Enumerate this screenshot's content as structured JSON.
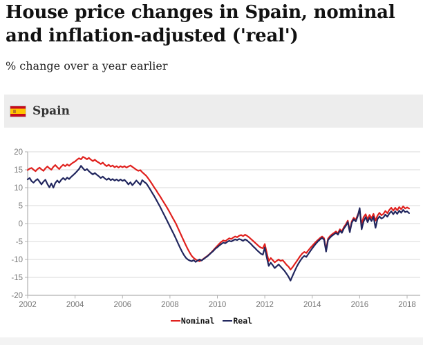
{
  "page": {
    "title": "House price changes in Spain, nominal and inflation-adjusted ('real')",
    "subtitle": "% change over a year earlier",
    "country_header": {
      "label": "Spain",
      "flag_icon": "spain-flag",
      "flag_colors": {
        "red": "#c60b1e",
        "yellow": "#ffc400"
      },
      "background": "#ededed"
    }
  },
  "chart_data": {
    "type": "line",
    "title": "",
    "xlabel": "",
    "ylabel": "",
    "x_start_year": 2002,
    "x_step_months": 1,
    "xlim": [
      2002,
      2018.25
    ],
    "ylim": [
      -20,
      20
    ],
    "x_ticks": [
      2002,
      2004,
      2006,
      2008,
      2010,
      2012,
      2014,
      2016,
      2018
    ],
    "y_ticks": [
      20,
      15,
      10,
      5,
      0,
      -5,
      -10,
      -15,
      -20
    ],
    "grid": true,
    "grid_color": "#d9d9d9",
    "axis_color": "#b0b0b0",
    "tick_label_color": "#777777",
    "legend_position": "bottom",
    "series": [
      {
        "name": "Nominal",
        "color": "#e0201d",
        "values": [
          14.9,
          15.3,
          15.5,
          15.0,
          14.6,
          15.2,
          15.6,
          15.1,
          14.7,
          15.4,
          15.9,
          15.4,
          15.0,
          15.8,
          16.3,
          15.7,
          15.2,
          15.9,
          16.4,
          16.0,
          16.5,
          16.1,
          16.6,
          17.0,
          17.3,
          17.8,
          18.2,
          17.9,
          18.6,
          18.3,
          17.9,
          18.3,
          17.8,
          17.4,
          17.8,
          17.3,
          17.0,
          16.6,
          17.0,
          16.4,
          16.0,
          16.4,
          15.9,
          16.2,
          15.7,
          16.0,
          15.6,
          16.0,
          15.7,
          16.0,
          15.6,
          15.9,
          16.2,
          15.8,
          15.4,
          15.0,
          14.7,
          14.9,
          14.3,
          13.8,
          13.3,
          12.6,
          11.8,
          11.0,
          10.1,
          9.3,
          8.4,
          7.6,
          6.7,
          5.8,
          4.9,
          4.0,
          3.0,
          2.0,
          1.0,
          0.0,
          -1.2,
          -2.4,
          -3.6,
          -4.8,
          -6.0,
          -7.1,
          -8.1,
          -9.0,
          -9.6,
          -10.0,
          -10.3,
          -10.5,
          -10.2,
          -9.8,
          -9.4,
          -9.0,
          -8.5,
          -8.0,
          -7.4,
          -6.8,
          -6.2,
          -5.6,
          -5.1,
          -4.7,
          -4.9,
          -4.5,
          -4.1,
          -4.3,
          -3.9,
          -3.6,
          -3.8,
          -3.4,
          -3.2,
          -3.5,
          -3.1,
          -3.4,
          -3.8,
          -4.3,
          -4.8,
          -5.3,
          -5.8,
          -6.3,
          -6.7,
          -6.9,
          -5.7,
          -8.2,
          -10.5,
          -9.6,
          -10.2,
          -10.8,
          -10.4,
          -10.0,
          -10.4,
          -10.2,
          -10.8,
          -11.5,
          -12.0,
          -12.8,
          -12.2,
          -11.4,
          -10.6,
          -9.8,
          -9.0,
          -8.3,
          -7.9,
          -8.2,
          -7.5,
          -6.8,
          -6.2,
          -5.6,
          -5.0,
          -4.5,
          -4.0,
          -3.6,
          -4.1,
          -7.4,
          -4.2,
          -3.5,
          -3.0,
          -2.6,
          -2.2,
          -2.7,
          -1.6,
          -2.2,
          -1.0,
          -0.2,
          0.8,
          -2.0,
          0.6,
          1.6,
          1.0,
          2.4,
          3.6,
          -0.2,
          1.8,
          2.6,
          1.2,
          2.4,
          1.5,
          2.7,
          0.8,
          2.2,
          3.0,
          2.3,
          2.7,
          3.5,
          2.9,
          3.8,
          4.4,
          3.6,
          4.4,
          3.7,
          4.6,
          4.0,
          4.8,
          4.2,
          4.5,
          4.2
        ]
      },
      {
        "name": "Real",
        "color": "#21265e",
        "values": [
          12.3,
          12.7,
          11.8,
          11.4,
          12.0,
          12.4,
          11.7,
          10.9,
          11.7,
          12.2,
          11.0,
          10.1,
          11.2,
          10.0,
          11.3,
          12.0,
          11.4,
          12.2,
          12.7,
          12.2,
          12.8,
          12.4,
          13.0,
          13.5,
          14.0,
          14.6,
          15.2,
          16.1,
          15.4,
          14.8,
          15.2,
          14.6,
          14.1,
          13.7,
          14.1,
          13.6,
          13.2,
          12.7,
          13.1,
          12.6,
          12.2,
          12.6,
          12.1,
          12.4,
          12.0,
          12.3,
          11.9,
          12.3,
          11.9,
          12.2,
          11.6,
          10.9,
          11.5,
          10.7,
          11.3,
          12.0,
          11.4,
          10.8,
          12.1,
          11.6,
          11.2,
          10.4,
          9.5,
          8.6,
          7.7,
          6.7,
          5.7,
          4.7,
          3.6,
          2.5,
          1.4,
          0.3,
          -0.8,
          -1.9,
          -3.0,
          -4.2,
          -5.4,
          -6.6,
          -7.7,
          -8.7,
          -9.5,
          -10.0,
          -10.3,
          -10.5,
          -10.2,
          -10.7,
          -10.3,
          -10.0,
          -10.3,
          -9.9,
          -9.5,
          -9.1,
          -8.6,
          -8.1,
          -7.6,
          -7.0,
          -6.6,
          -6.1,
          -5.7,
          -5.3,
          -5.5,
          -5.1,
          -4.8,
          -5.0,
          -4.7,
          -4.4,
          -4.6,
          -4.3,
          -4.5,
          -4.8,
          -4.4,
          -4.7,
          -5.2,
          -5.7,
          -6.3,
          -6.8,
          -7.4,
          -7.9,
          -8.4,
          -8.7,
          -6.7,
          -9.5,
          -11.8,
          -10.9,
          -11.6,
          -12.4,
          -11.9,
          -11.4,
          -12.0,
          -12.6,
          -13.2,
          -14.0,
          -14.8,
          -15.9,
          -14.6,
          -13.4,
          -12.2,
          -11.2,
          -10.3,
          -9.5,
          -9.0,
          -9.3,
          -8.5,
          -7.7,
          -6.9,
          -6.2,
          -5.5,
          -4.9,
          -4.4,
          -4.0,
          -4.5,
          -7.8,
          -4.6,
          -3.9,
          -3.4,
          -3.0,
          -2.6,
          -3.1,
          -2.0,
          -2.6,
          -1.4,
          -0.6,
          0.4,
          -2.4,
          0.2,
          1.2,
          0.6,
          2.0,
          4.3,
          -1.6,
          0.6,
          1.8,
          0.4,
          1.6,
          0.7,
          1.9,
          -1.2,
          1.2,
          2.0,
          1.4,
          1.7,
          2.5,
          1.9,
          2.8,
          3.4,
          2.6,
          3.4,
          2.7,
          3.6,
          3.0,
          3.8,
          3.2,
          3.4,
          2.9
        ]
      }
    ]
  }
}
